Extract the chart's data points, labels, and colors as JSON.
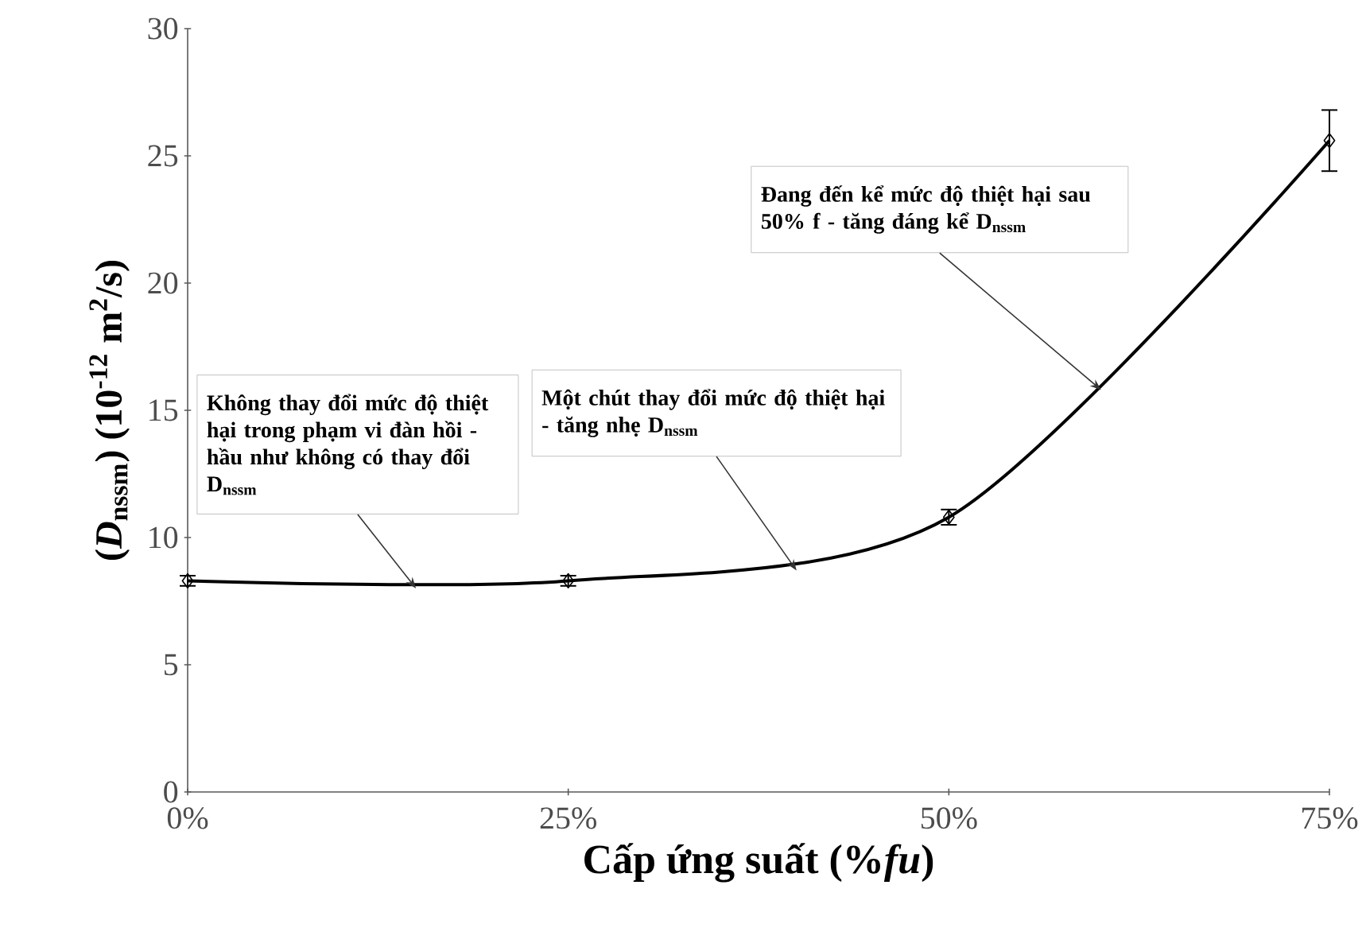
{
  "chart_data": {
    "type": "line",
    "xlabel": "Cấp ứng suất (%*fu*)",
    "ylabel": "(*D*$_{nssm}$) (10$^{-12}$ m$^{2}$/s)",
    "x": [
      0,
      25,
      50,
      75
    ],
    "series": [
      {
        "color": "#000000",
        "values": [
          8.3,
          8.3,
          10.8,
          25.6
        ],
        "errors": [
          0.2,
          0.2,
          0.3,
          1.2
        ]
      }
    ],
    "xlim": [
      0,
      75
    ],
    "xticks": [
      {
        "value": 0,
        "label": "0%"
      },
      {
        "value": 25,
        "label": "25%"
      },
      {
        "value": 50,
        "label": "50%"
      },
      {
        "value": 75,
        "label": "75%"
      }
    ],
    "ylim": [
      0,
      30
    ],
    "yticks": [
      0,
      5,
      10,
      15,
      20,
      25,
      30
    ],
    "marker": "diamond",
    "line_style": "solid",
    "annotations": [
      {
        "text": "Không thay đổi mức độ thiệt hại trong phạm vi đàn hồi - hầu như không có thay đổi D$_{nssm}$",
        "x": 15,
        "y": 8.0
      },
      {
        "text": "Một chút thay đổi mức độ thiệt hại -  tăng nhẹ D$_{nssm}$",
        "x": 40,
        "y": 8.7
      },
      {
        "text": "Đang đến kể mức độ thiệt hại sau 50% f - tăng đáng kể D$_{nssm}$",
        "x": 60,
        "y": 15.8
      }
    ]
  }
}
